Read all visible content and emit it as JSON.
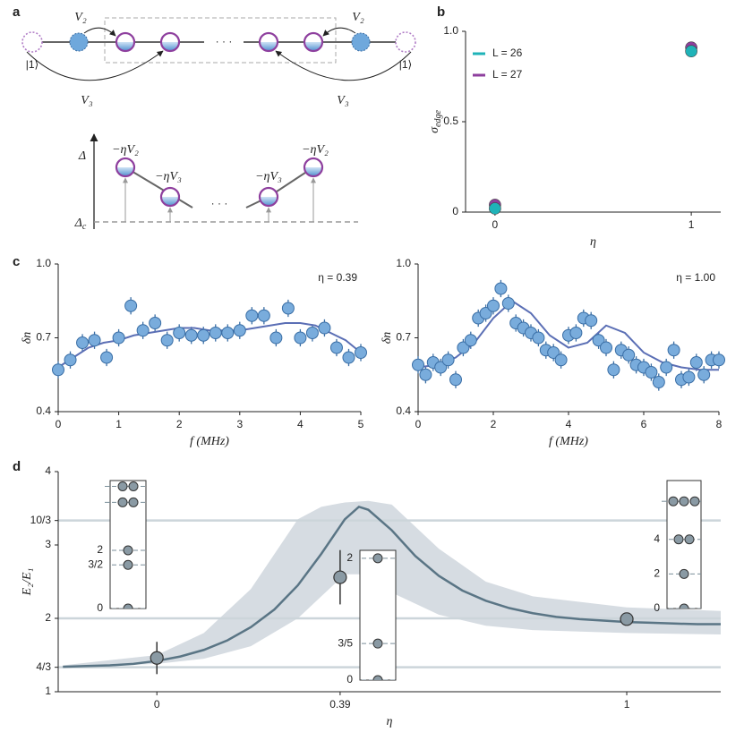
{
  "panel_labels": [
    "a",
    "b",
    "c",
    "d"
  ],
  "diagram": {
    "top": {
      "v2_left": "V₂",
      "v2_right": "V₂",
      "v3_left": "V₃",
      "v3_right": "V₃",
      "ket_left": "|1⟩",
      "ket_right": "|1⟩",
      "ellipsis": "· · ·"
    },
    "bottom": {
      "delta": "Δ",
      "delta_c": {
        "main": "Δ",
        "sub": "c"
      },
      "labels": [
        "−ηV₂",
        "−ηV₃",
        "−ηV₃",
        "−ηV₂"
      ],
      "ellipsis": "· · ·"
    }
  },
  "chart_data": [
    {
      "type": "scatter",
      "x": [
        0,
        1
      ],
      "xlim": [
        -0.15,
        1.15
      ],
      "xticks": [
        0,
        1
      ],
      "ylim": [
        0,
        1
      ],
      "yticks": [
        0,
        0.5,
        {
          "value": 1,
          "label": "1.0"
        }
      ],
      "xlabel": "η",
      "ylabel": "σ",
      "ylabel_sub": "edge",
      "legend": "upper left",
      "series": [
        {
          "name": "L = 27",
          "color": "#8e3f9e",
          "values": [
            0.04,
            0.91
          ]
        },
        {
          "name": "L = 26",
          "color": "#1fb3b8",
          "values": [
            0.02,
            0.89
          ]
        }
      ]
    },
    {
      "type": "scatter",
      "color": "#79acdc",
      "fit_color": "#5b6fb5",
      "x": [
        0,
        0.2,
        0.4,
        0.6,
        0.8,
        1.0,
        1.2,
        1.4,
        1.6,
        1.8,
        2.0,
        2.2,
        2.4,
        2.6,
        2.8,
        3.0,
        3.2,
        3.4,
        3.6,
        3.8,
        4.0,
        4.2,
        4.4,
        4.6,
        4.8,
        5.0
      ],
      "values": [
        0.57,
        0.61,
        0.68,
        0.69,
        0.62,
        0.7,
        0.83,
        0.73,
        0.76,
        0.69,
        0.72,
        0.71,
        0.71,
        0.72,
        0.72,
        0.73,
        0.79,
        0.79,
        0.7,
        0.82,
        0.7,
        0.72,
        0.74,
        0.66,
        0.62,
        0.64
      ],
      "error": 0.035,
      "fit": {
        "x": [
          0,
          0.25,
          0.5,
          0.75,
          1.0,
          1.25,
          1.5,
          1.75,
          2.0,
          2.25,
          2.5,
          2.75,
          3.0,
          3.25,
          3.5,
          3.75,
          4.0,
          4.25,
          4.5,
          4.75,
          5.0
        ],
        "values": [
          0.58,
          0.62,
          0.66,
          0.68,
          0.69,
          0.71,
          0.72,
          0.73,
          0.74,
          0.74,
          0.73,
          0.73,
          0.73,
          0.74,
          0.75,
          0.76,
          0.76,
          0.75,
          0.72,
          0.69,
          0.64
        ]
      },
      "xlim": [
        0,
        5
      ],
      "xticks": [
        0,
        1,
        2,
        3,
        4,
        5
      ],
      "ylim": [
        0.4,
        1
      ],
      "yticks": [
        0.4,
        0.7,
        {
          "value": 1,
          "label": "1.0"
        }
      ],
      "xlabel": "f (MHz)",
      "ylabel": "δn",
      "annotation": "η = 0.39"
    },
    {
      "type": "scatter",
      "color": "#79acdc",
      "fit_color": "#5b6fb5",
      "x": [
        0,
        0.2,
        0.4,
        0.6,
        0.8,
        1.0,
        1.2,
        1.4,
        1.6,
        1.8,
        2.0,
        2.2,
        2.4,
        2.6,
        2.8,
        3.0,
        3.2,
        3.4,
        3.6,
        3.8,
        4.0,
        4.2,
        4.4,
        4.6,
        4.8,
        5.0,
        5.2,
        5.4,
        5.6,
        5.8,
        6.0,
        6.2,
        6.4,
        6.6,
        6.8,
        7.0,
        7.2,
        7.4,
        7.6,
        7.8,
        8.0
      ],
      "values": [
        0.59,
        0.55,
        0.6,
        0.58,
        0.61,
        0.53,
        0.66,
        0.69,
        0.78,
        0.8,
        0.83,
        0.9,
        0.84,
        0.76,
        0.74,
        0.72,
        0.7,
        0.65,
        0.64,
        0.61,
        0.71,
        0.72,
        0.78,
        0.77,
        0.69,
        0.66,
        0.57,
        0.65,
        0.63,
        0.59,
        0.58,
        0.56,
        0.52,
        0.58,
        0.65,
        0.53,
        0.54,
        0.6,
        0.55,
        0.61,
        0.61
      ],
      "error": 0.035,
      "fit": {
        "x": [
          0,
          0.5,
          1.0,
          1.5,
          2.0,
          2.5,
          3.0,
          3.5,
          4.0,
          4.5,
          5.0,
          5.5,
          6.0,
          6.5,
          7.0,
          7.5,
          8.0
        ],
        "values": [
          0.58,
          0.59,
          0.62,
          0.68,
          0.78,
          0.85,
          0.8,
          0.71,
          0.66,
          0.68,
          0.75,
          0.72,
          0.64,
          0.6,
          0.58,
          0.57,
          0.57
        ]
      },
      "xlim": [
        0,
        8
      ],
      "xticks": [
        0,
        2,
        4,
        6,
        8
      ],
      "ylim": [
        0.4,
        1
      ],
      "yticks": [
        0.4,
        0.7,
        {
          "value": 1,
          "label": "1.0"
        }
      ],
      "xlabel": "f (MHz)",
      "ylabel": "δn",
      "annotation": "η = 1.00"
    },
    {
      "type": "line",
      "color": "#5a7585",
      "x": [
        -0.2,
        -0.15,
        -0.1,
        -0.05,
        0,
        0.05,
        0.1,
        0.15,
        0.2,
        0.25,
        0.3,
        0.35,
        0.4,
        0.43,
        0.45,
        0.5,
        0.55,
        0.6,
        0.65,
        0.7,
        0.75,
        0.8,
        0.85,
        0.9,
        0.95,
        1.0,
        1.05,
        1.1,
        1.15,
        1.2
      ],
      "values": [
        1.34,
        1.35,
        1.36,
        1.38,
        1.42,
        1.48,
        1.57,
        1.7,
        1.88,
        2.12,
        2.45,
        2.88,
        3.35,
        3.52,
        3.48,
        3.2,
        2.85,
        2.58,
        2.38,
        2.24,
        2.14,
        2.07,
        2.02,
        1.99,
        1.97,
        1.95,
        1.94,
        1.93,
        1.92,
        1.92
      ],
      "band": {
        "color": "#d6dce2",
        "x": [
          -0.2,
          0,
          0.1,
          0.2,
          0.3,
          0.35,
          0.4,
          0.45,
          0.5,
          0.6,
          0.7,
          0.8,
          1.0,
          1.2
        ],
        "upper": [
          1.36,
          1.5,
          1.8,
          2.4,
          3.35,
          3.52,
          3.58,
          3.6,
          3.55,
          2.95,
          2.5,
          2.3,
          2.15,
          2.1
        ],
        "lower": [
          1.33,
          1.38,
          1.45,
          1.62,
          2.0,
          2.3,
          2.6,
          2.6,
          2.35,
          2.05,
          1.9,
          1.84,
          1.8,
          1.78
        ]
      },
      "points": {
        "color": "#8a9aa4",
        "x": [
          0,
          0.39,
          1
        ],
        "values": [
          1.46,
          2.56,
          1.99
        ],
        "errors": [
          0.22,
          0.37,
          0.02
        ]
      },
      "hlines": [
        1.3333,
        2,
        3.3333
      ],
      "xlim": [
        -0.21,
        1.2
      ],
      "xticks": [
        0,
        0.39,
        1
      ],
      "ylim": [
        1,
        4
      ],
      "yticks": [
        1,
        {
          "value": 1.3333,
          "label": "4/3"
        },
        2,
        3,
        {
          "value": 3.3333,
          "label": "10/3"
        },
        4
      ],
      "xlabel": "η",
      "ylabel": "E₂/E₁",
      "insets": [
        {
          "ylim": [
            0,
            4.4
          ],
          "levels": [
            {
              "value": 0,
              "label": "0",
              "dots": 1
            },
            {
              "value": 1.5,
              "label": "3/2",
              "dots": 1
            },
            {
              "value": 2,
              "label": "2",
              "dots": 1
            },
            {
              "value": 3.65,
              "dots": 2
            },
            {
              "value": 4.2,
              "dots": 2
            }
          ]
        },
        {
          "ylim": [
            0,
            2.13
          ],
          "levels": [
            {
              "value": 0,
              "label": "0",
              "dots": 1
            },
            {
              "value": 0.6,
              "label": "3/5",
              "dots": 1
            },
            {
              "value": 2,
              "label": "2",
              "dots": 1
            }
          ]
        },
        {
          "ylim": [
            0,
            7.4
          ],
          "levels": [
            {
              "value": 0,
              "label": "0",
              "dots": 1
            },
            {
              "value": 2,
              "label": "2",
              "dots": 1
            },
            {
              "value": 4,
              "label": "4",
              "dots": 2
            },
            {
              "value": 6.2,
              "dots": 3
            }
          ]
        }
      ]
    }
  ]
}
